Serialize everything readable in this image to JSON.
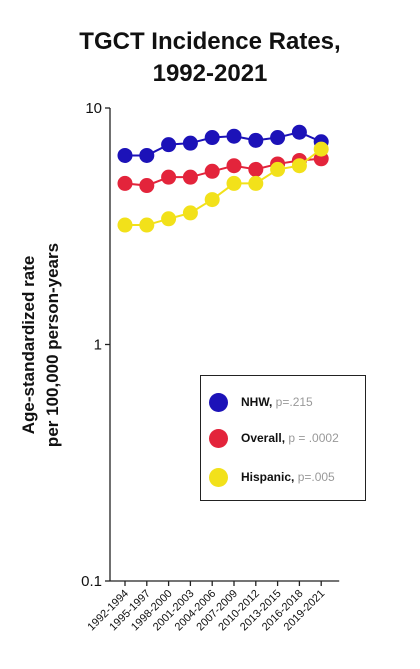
{
  "chart_data": {
    "type": "line",
    "title_lines": [
      "TGCT Incidence Rates,",
      "1992-2021"
    ],
    "xlabel": "",
    "ylabel_lines": [
      "Age-standardized rate",
      "per 100,000 person-years"
    ],
    "y_scale": "log",
    "ylim": [
      0.1,
      10
    ],
    "y_ticks": [
      0.1,
      1,
      10
    ],
    "y_tick_labels": [
      "0.1",
      "1",
      "10"
    ],
    "grid": false,
    "legend_placement": "lower-right",
    "categories": [
      "1992-1994",
      "1995-1997",
      "1998-2000",
      "2001-2003",
      "2004-2006",
      "2007-2009",
      "2010-2012",
      "2013-2015",
      "2016-2018",
      "2019-2021"
    ],
    "series": [
      {
        "name": "NHW,",
        "pvalue": "p=.215",
        "color": "#1c12b8",
        "values": [
          6.3,
          6.3,
          7.0,
          7.1,
          7.5,
          7.6,
          7.3,
          7.5,
          7.9,
          7.2
        ]
      },
      {
        "name": "Overall,",
        "pvalue": "p = .0002",
        "color": "#e3243b",
        "values": [
          4.8,
          4.7,
          5.1,
          5.1,
          5.4,
          5.7,
          5.5,
          5.8,
          6.0,
          6.1
        ]
      },
      {
        "name": "Hispanic,",
        "pvalue": "p=.005",
        "color": "#f2e11a",
        "values": [
          3.2,
          3.2,
          3.4,
          3.6,
          4.1,
          4.8,
          4.8,
          5.5,
          5.7,
          6.7
        ]
      }
    ]
  }
}
